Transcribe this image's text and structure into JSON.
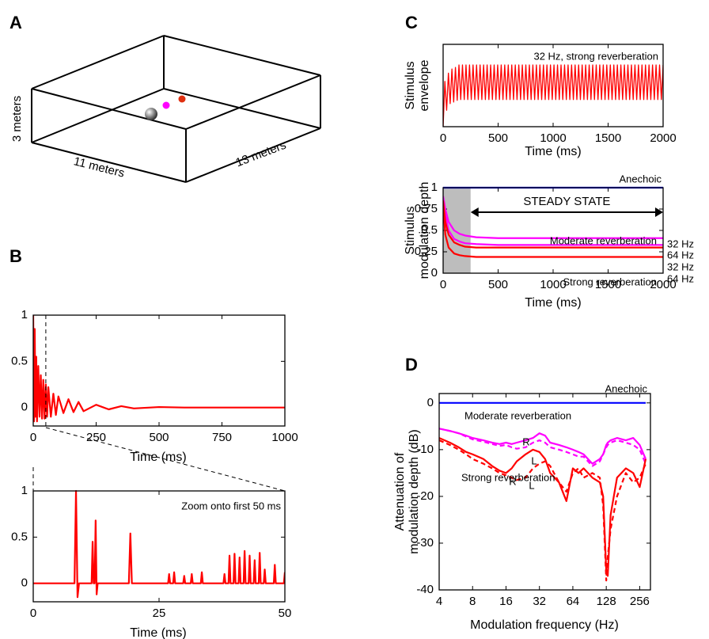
{
  "panel_a": {
    "label": "A",
    "height_label": "3 meters",
    "width_label": "11 meters",
    "depth_label": "13 meters"
  },
  "chart_data": [
    {
      "type": "line",
      "label": "B",
      "xlabel": "Time (ms)",
      "xlim": [
        0,
        1000
      ],
      "xticks": [
        0,
        250,
        500,
        750,
        1000
      ],
      "ylim": [
        -0.2,
        1
      ],
      "yticks": [
        0,
        0.5,
        1
      ],
      "vline": 50,
      "x": [
        0,
        3,
        6,
        9,
        12,
        15,
        20,
        25,
        30,
        35,
        40,
        45,
        50,
        55,
        60,
        70,
        80,
        90,
        100,
        120,
        140,
        160,
        180,
        200,
        250,
        300,
        350,
        400,
        500,
        600,
        1000
      ],
      "series": [
        {
          "color": "#ff0000",
          "values": [
            1,
            -0.15,
            0.85,
            -0.1,
            0.55,
            -0.15,
            0.45,
            -0.1,
            0.35,
            -0.12,
            0.3,
            -0.12,
            0.25,
            -0.1,
            0.22,
            -0.1,
            0.15,
            -0.08,
            0.12,
            -0.06,
            0.09,
            -0.05,
            0.06,
            -0.04,
            0.03,
            -0.02,
            0.015,
            -0.01,
            0.005,
            0,
            0
          ]
        }
      ]
    },
    {
      "type": "line",
      "xlabel": "Time (ms)",
      "annotation": "Zoom onto first 50 ms",
      "xlim": [
        0,
        50
      ],
      "xticks": [
        0,
        25,
        50
      ],
      "ylim": [
        -0.2,
        1
      ],
      "yticks": [
        0,
        0.5,
        1
      ],
      "x": [
        0,
        8.2,
        8.5,
        8.8,
        9.1,
        11.6,
        11.8,
        12,
        12.2,
        12.4,
        12.6,
        12.8,
        19,
        19.3,
        19.6,
        26.8,
        27,
        27.2,
        27.8,
        28,
        28.2,
        29.8,
        30,
        30.2,
        31.3,
        31.5,
        31.7,
        33.3,
        33.5,
        33.7,
        37.8,
        38,
        38.2,
        38.8,
        39,
        39.2,
        39.8,
        40,
        40.2,
        40.8,
        41,
        41.2,
        41.8,
        42,
        42.2,
        42.8,
        43,
        43.2,
        43.8,
        44,
        44.2,
        44.8,
        45,
        45.2,
        45.8,
        46,
        46.2,
        47.8,
        48,
        48.2,
        49.8,
        50
      ],
      "series": [
        {
          "color": "#ff0000",
          "values": [
            0,
            0,
            1,
            -0.15,
            0,
            0,
            0.45,
            0,
            0,
            0.68,
            -0.12,
            0,
            0,
            0.54,
            0,
            0,
            0.1,
            0,
            0,
            0.12,
            0,
            0,
            0.08,
            0,
            0,
            0.1,
            0,
            0,
            0.12,
            0,
            0,
            0.1,
            0,
            0,
            0.3,
            0,
            0,
            0.32,
            0,
            0,
            0.28,
            0,
            0,
            0.35,
            0,
            0,
            0.3,
            0,
            0,
            0.25,
            0,
            0,
            0.33,
            0,
            0,
            0.15,
            0,
            0,
            0.2,
            0,
            0,
            0.12
          ]
        }
      ]
    },
    {
      "type": "line",
      "label": "C",
      "xlabel": "Time (ms)",
      "ylabel": [
        "Stimulus",
        "envelope"
      ],
      "annotation": "32 Hz, strong reverberation",
      "xlim": [
        0,
        2000
      ],
      "xticks": [
        0,
        500,
        1000,
        1500,
        2000
      ],
      "ylim": [
        0,
        1
      ],
      "x": [
        0,
        16,
        32,
        48,
        64,
        80,
        96,
        112,
        128,
        144,
        160,
        176,
        192,
        208,
        224,
        240,
        256,
        272,
        288,
        304,
        320,
        336,
        352,
        368,
        384,
        400,
        416,
        432,
        448,
        464,
        480,
        496,
        512,
        528,
        544,
        560,
        576,
        592,
        608,
        624,
        640,
        656,
        672,
        688,
        704,
        720,
        736,
        752,
        768,
        784,
        800,
        816,
        832,
        848,
        864,
        880,
        896,
        912,
        928,
        944,
        960,
        976,
        992,
        1008,
        1024,
        1040,
        1056,
        1072,
        1088,
        1104,
        1120,
        1136,
        1152,
        1168,
        1184,
        1200,
        1216,
        1232,
        1248,
        1264,
        1280,
        1296,
        1312,
        1328,
        1344,
        1360,
        1376,
        1392,
        1408,
        1424,
        1440,
        1456,
        1472,
        1488,
        1504,
        1520,
        1536,
        1552,
        1568,
        1584,
        1600,
        1616,
        1632,
        1648,
        1664,
        1680,
        1696,
        1712,
        1728,
        1744,
        1760,
        1776,
        1792,
        1808,
        1824,
        1840,
        1856,
        1872,
        1888,
        1904,
        1920,
        1936,
        1952,
        1968,
        1984,
        2000
      ],
      "series": [
        {
          "color": "#ff0000",
          "values": [
            0,
            0.55,
            0.2,
            0.65,
            0.28,
            0.7,
            0.3,
            0.72,
            0.32,
            0.75,
            0.33,
            0.75,
            0.33,
            0.75,
            0.33,
            0.75,
            0.33,
            0.75,
            0.33,
            0.75,
            0.33,
            0.75,
            0.33,
            0.75,
            0.33,
            0.75,
            0.33,
            0.75,
            0.33,
            0.75,
            0.33,
            0.75,
            0.33,
            0.75,
            0.33,
            0.75,
            0.33,
            0.75,
            0.33,
            0.75,
            0.33,
            0.75,
            0.33,
            0.75,
            0.33,
            0.75,
            0.33,
            0.75,
            0.33,
            0.75,
            0.33,
            0.75,
            0.33,
            0.75,
            0.33,
            0.75,
            0.33,
            0.75,
            0.33,
            0.75,
            0.33,
            0.75,
            0.33,
            0.75,
            0.33,
            0.75,
            0.33,
            0.75,
            0.33,
            0.75,
            0.33,
            0.75,
            0.33,
            0.75,
            0.33,
            0.75,
            0.33,
            0.75,
            0.33,
            0.75,
            0.33,
            0.75,
            0.33,
            0.75,
            0.33,
            0.75,
            0.33,
            0.75,
            0.33,
            0.75,
            0.33,
            0.75,
            0.33,
            0.75,
            0.33,
            0.75,
            0.33,
            0.75,
            0.33,
            0.75,
            0.33,
            0.75,
            0.33,
            0.75,
            0.33,
            0.75,
            0.33,
            0.75,
            0.33,
            0.75,
            0.33,
            0.75,
            0.33,
            0.75,
            0.33,
            0.75,
            0.33,
            0.75,
            0.33,
            0.75,
            0.33,
            0.75,
            0.33,
            0.75,
            0.33,
            0.75
          ]
        }
      ]
    },
    {
      "type": "line",
      "xlabel": "Time (ms)",
      "ylabel": [
        "Stimulus",
        "modulation depth"
      ],
      "annotations": [
        "Moderate reverberation",
        "Strong reverberation"
      ],
      "steady_state": {
        "label": "STEADY STATE",
        "range": [
          250,
          2000
        ]
      },
      "shade": [
        0,
        250
      ],
      "xlim": [
        0,
        2000
      ],
      "xticks": [
        0,
        500,
        1000,
        1500,
        2000
      ],
      "ylim": [
        0,
        1
      ],
      "yticks": [
        0,
        0.25,
        0.5,
        0.75,
        1
      ],
      "x": [
        0,
        20,
        50,
        100,
        150,
        200,
        300,
        500,
        1000,
        2000
      ],
      "series": [
        {
          "name": "Anechoic",
          "color": "#0000ff",
          "values": [
            1,
            1,
            1,
            1,
            1,
            1,
            1,
            1,
            1,
            1
          ]
        },
        {
          "name": "32 Hz",
          "color": "#ff00ff",
          "values": [
            0.9,
            0.75,
            0.6,
            0.5,
            0.46,
            0.44,
            0.42,
            0.41,
            0.41,
            0.41
          ]
        },
        {
          "name": "64 Hz",
          "color": "#ff00ff",
          "values": [
            0.88,
            0.68,
            0.5,
            0.4,
            0.37,
            0.35,
            0.34,
            0.33,
            0.33,
            0.33
          ]
        },
        {
          "name": "32 Hz",
          "color": "#ff0000",
          "values": [
            0.85,
            0.6,
            0.45,
            0.36,
            0.33,
            0.31,
            0.3,
            0.3,
            0.3,
            0.3
          ]
        },
        {
          "name": "64 Hz",
          "color": "#ff0000",
          "values": [
            0.8,
            0.45,
            0.3,
            0.23,
            0.21,
            0.2,
            0.19,
            0.19,
            0.19,
            0.19
          ]
        }
      ]
    },
    {
      "type": "line",
      "label": "D",
      "xlabel": "Modulation frequency (Hz)",
      "ylabel": [
        "Attenuation of",
        "modulation depth (dB)"
      ],
      "annotations": [
        "Moderate reverberation",
        "Strong reverberation"
      ],
      "xscale": "log",
      "xlim": [
        4,
        320
      ],
      "xticks": [
        4,
        8,
        16,
        32,
        64,
        128,
        256
      ],
      "ylim": [
        -40,
        2
      ],
      "yticks": [
        -40,
        -30,
        -20,
        -10,
        0
      ],
      "x": [
        4,
        5,
        6,
        7,
        8,
        10,
        12,
        14,
        16,
        18,
        20,
        24,
        28,
        32,
        36,
        40,
        48,
        56,
        64,
        72,
        80,
        96,
        112,
        120,
        128,
        132,
        140,
        160,
        192,
        224,
        256,
        290
      ],
      "series": [
        {
          "name": "Anechoic",
          "color": "#0000ff",
          "values": [
            0,
            0,
            0,
            0,
            0,
            0,
            0,
            0,
            0,
            0,
            0,
            0,
            0,
            0,
            0,
            0,
            0,
            0,
            0,
            0,
            0,
            0,
            0,
            0,
            0,
            0,
            0,
            0,
            0,
            0,
            0,
            0
          ]
        },
        {
          "name": "R",
          "color": "#ff00ff",
          "values": [
            -5.5,
            -6,
            -6.5,
            -7,
            -7.5,
            -8,
            -8.5,
            -8.8,
            -8.5,
            -8.8,
            -8.5,
            -8,
            -7.5,
            -6.5,
            -7,
            -8.5,
            -9,
            -9.5,
            -10,
            -10.5,
            -11,
            -13,
            -12,
            -11,
            -9,
            -8.5,
            -8,
            -7.5,
            -8,
            -7.5,
            -9,
            -12
          ]
        },
        {
          "name": "L",
          "color": "#ff00ff",
          "dashed": true,
          "values": [
            -5.5,
            -6,
            -6.5,
            -7.2,
            -7.8,
            -8.3,
            -8.8,
            -9.2,
            -9,
            -9.5,
            -9.8,
            -9.5,
            -8.5,
            -8,
            -8.5,
            -9.5,
            -10,
            -10.5,
            -11,
            -11.5,
            -11.5,
            -13.5,
            -12.5,
            -11,
            -9.5,
            -9,
            -8.5,
            -8,
            -8.5,
            -9,
            -10,
            -13
          ]
        },
        {
          "name": "R",
          "color": "#ff0000",
          "values": [
            -7.5,
            -8.5,
            -9.5,
            -10.5,
            -11,
            -12,
            -13.5,
            -14.5,
            -15,
            -14,
            -12.5,
            -11,
            -10,
            -10.5,
            -12,
            -15,
            -17,
            -21,
            -14,
            -15,
            -14,
            -16,
            -17,
            -20,
            -36,
            -37,
            -24,
            -16,
            -14,
            -15,
            -18,
            -12
          ]
        },
        {
          "name": "L",
          "color": "#ff0000",
          "dashed": true,
          "values": [
            -8,
            -9,
            -10,
            -11,
            -12,
            -13,
            -14,
            -15,
            -15.5,
            -16,
            -16.5,
            -16,
            -14,
            -13,
            -12.5,
            -13.5,
            -17,
            -19,
            -15,
            -14,
            -16,
            -15,
            -16,
            -22,
            -38,
            -33,
            -27,
            -20,
            -15,
            -17,
            -16,
            -13
          ]
        }
      ]
    }
  ]
}
